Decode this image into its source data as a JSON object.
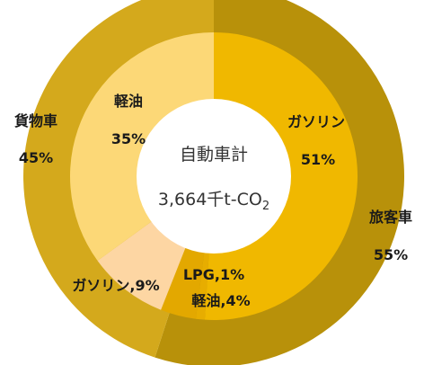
{
  "chart_data": {
    "type": "pie",
    "subtype": "double-donut",
    "center_text": {
      "line1": "自動車計",
      "total_value": "3,664",
      "total_unit": "千t-CO",
      "total_subscript": "2"
    },
    "outer_ring": {
      "slices": [
        {
          "label": "旅客車",
          "pct_text": "55%",
          "value": 55,
          "color": "#b8910a"
        },
        {
          "label": "貨物車",
          "pct_text": "45%",
          "value": 45,
          "color": "#d4a91c"
        }
      ]
    },
    "inner_ring": {
      "slices": [
        {
          "label": "ガソリン",
          "pct_text": "51%",
          "value": 51,
          "color": "#f0b800"
        },
        {
          "label": "LPG",
          "pct_text": "1%",
          "value": 1,
          "color": "#e7ad00"
        },
        {
          "label": "軽油",
          "pct_text": "4%",
          "value": 4,
          "color": "#e3a800"
        },
        {
          "label": "ガソリン",
          "pct_text": "9%",
          "value": 9,
          "color": "#fdd6a3"
        },
        {
          "label": "軽油",
          "pct_text": "35%",
          "value": 35,
          "color": "#fcd877"
        }
      ]
    },
    "labels": {
      "outer_passenger": [
        "旅客車",
        "55%"
      ],
      "outer_freight": [
        "貨物車",
        "45%"
      ],
      "inner_gasoline_passenger": [
        "ガソリン",
        "51%"
      ],
      "inner_lpg": "LPG,1%",
      "inner_diesel_passenger": "軽油,4%",
      "inner_gasoline_freight": "ガソリン,9%",
      "inner_diesel_freight": [
        "軽油",
        "35%"
      ]
    }
  }
}
